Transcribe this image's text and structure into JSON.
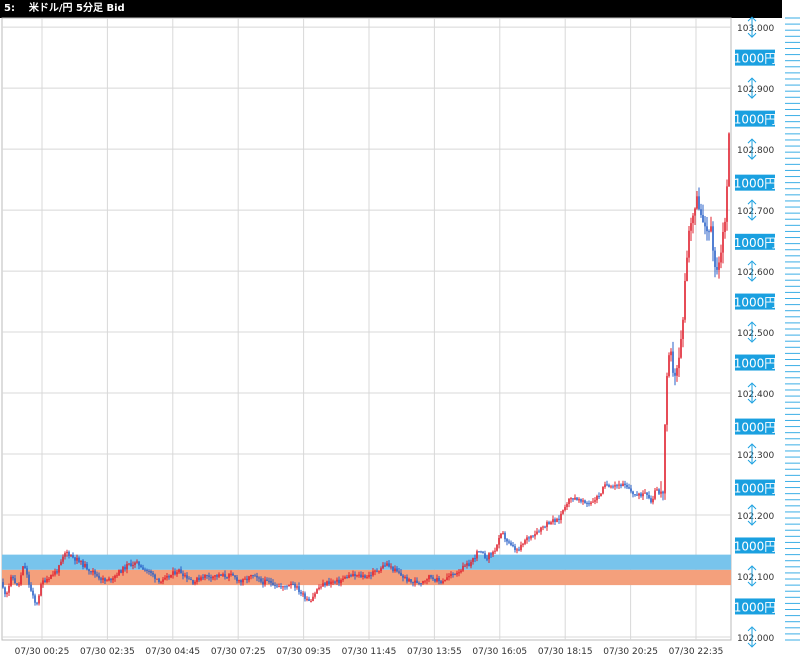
{
  "window": {
    "title": "5:    米ドル/円 5分足 Bid"
  },
  "colors": {
    "up": "#e0202e",
    "down": "#2860c8",
    "grid": "#d8d8d8",
    "band_blue": "#78c4ec",
    "band_orange": "#f4a07c",
    "badge_bg": "#1aa0e0",
    "badge_text": "#ffffff",
    "ladder_blue": "#3aaee6",
    "ladder_red": "#e04050",
    "ladder_black": "#333333"
  },
  "chart_data": {
    "type": "candlestick",
    "instrument": "米ドル/円 5分足 Bid",
    "ylim": [
      101.995,
      103.015
    ],
    "yticks": [
      "103.000",
      "102.900",
      "102.800",
      "102.700",
      "102.600",
      "102.500",
      "102.400",
      "102.300",
      "102.200",
      "102.100",
      "102.000"
    ],
    "xticks": [
      "07/30 00:25",
      "07/30 02:35",
      "07/30 04:45",
      "07/30 07:25",
      "07/30 09:35",
      "07/30 11:45",
      "07/30 13:55",
      "07/30 16:05",
      "07/30 18:15",
      "07/30 20:25",
      "07/30 22:35"
    ],
    "badges": [
      "1000円",
      "1000円",
      "1000円",
      "1000円",
      "1000円",
      "1000円",
      "1000円",
      "1000円",
      "1000円",
      "1000円"
    ],
    "badge_prices": [
      102.95,
      102.85,
      102.745,
      102.648,
      102.55,
      102.45,
      102.345,
      102.245,
      102.15,
      102.05
    ],
    "bands": [
      {
        "name": "upper-band",
        "color": "blue",
        "y_range": [
          102.11,
          102.135
        ]
      },
      {
        "name": "lower-band",
        "color": "orange",
        "y_range": [
          102.085,
          102.11
        ]
      }
    ],
    "price_path": [
      [
        0,
        102.09
      ],
      [
        6,
        102.07
      ],
      [
        12,
        102.1
      ],
      [
        18,
        102.08
      ],
      [
        24,
        102.12
      ],
      [
        30,
        102.08
      ],
      [
        36,
        102.05
      ],
      [
        42,
        102.09
      ],
      [
        50,
        102.1
      ],
      [
        58,
        102.11
      ],
      [
        66,
        102.14
      ],
      [
        74,
        102.13
      ],
      [
        82,
        102.12
      ],
      [
        90,
        102.11
      ],
      [
        98,
        102.1
      ],
      [
        106,
        102.09
      ],
      [
        114,
        102.1
      ],
      [
        122,
        102.11
      ],
      [
        130,
        102.12
      ],
      [
        138,
        102.12
      ],
      [
        146,
        102.11
      ],
      [
        154,
        102.1
      ],
      [
        162,
        102.09
      ],
      [
        170,
        102.1
      ],
      [
        178,
        102.11
      ],
      [
        186,
        102.1
      ],
      [
        194,
        102.09
      ],
      [
        202,
        102.1
      ],
      [
        212,
        102.1
      ],
      [
        222,
        102.1
      ],
      [
        232,
        102.1
      ],
      [
        242,
        102.09
      ],
      [
        252,
        102.1
      ],
      [
        262,
        102.09
      ],
      [
        272,
        102.09
      ],
      [
        282,
        102.08
      ],
      [
        292,
        102.09
      ],
      [
        302,
        102.07
      ],
      [
        310,
        102.06
      ],
      [
        318,
        102.08
      ],
      [
        328,
        102.09
      ],
      [
        338,
        102.09
      ],
      [
        348,
        102.1
      ],
      [
        358,
        102.1
      ],
      [
        368,
        102.1
      ],
      [
        378,
        102.11
      ],
      [
        386,
        102.12
      ],
      [
        394,
        102.11
      ],
      [
        402,
        102.1
      ],
      [
        410,
        102.09
      ],
      [
        420,
        102.09
      ],
      [
        430,
        102.1
      ],
      [
        440,
        102.09
      ],
      [
        450,
        102.1
      ],
      [
        460,
        102.11
      ],
      [
        470,
        102.12
      ],
      [
        478,
        102.14
      ],
      [
        486,
        102.13
      ],
      [
        494,
        102.14
      ],
      [
        502,
        102.17
      ],
      [
        510,
        102.15
      ],
      [
        518,
        102.14
      ],
      [
        526,
        102.16
      ],
      [
        534,
        102.17
      ],
      [
        542,
        102.18
      ],
      [
        550,
        102.19
      ],
      [
        558,
        102.19
      ],
      [
        566,
        102.22
      ],
      [
        574,
        102.23
      ],
      [
        582,
        102.22
      ],
      [
        590,
        102.22
      ],
      [
        598,
        102.23
      ],
      [
        606,
        102.25
      ],
      [
        614,
        102.25
      ],
      [
        622,
        102.25
      ],
      [
        630,
        102.24
      ],
      [
        638,
        102.23
      ],
      [
        646,
        102.24
      ],
      [
        652,
        102.22
      ],
      [
        656,
        102.25
      ],
      [
        660,
        102.23
      ],
      [
        663,
        102.24
      ],
      [
        666,
        102.4
      ],
      [
        670,
        102.47
      ],
      [
        674,
        102.43
      ],
      [
        678,
        102.44
      ],
      [
        682,
        102.5
      ],
      [
        686,
        102.61
      ],
      [
        690,
        102.68
      ],
      [
        694,
        102.7
      ],
      [
        698,
        102.72
      ],
      [
        702,
        102.68
      ],
      [
        706,
        102.66
      ],
      [
        710,
        102.68
      ],
      [
        714,
        102.62
      ],
      [
        718,
        102.6
      ],
      [
        722,
        102.65
      ],
      [
        726,
        102.7
      ],
      [
        729,
        102.82
      ],
      [
        731,
        102.8
      ]
    ]
  }
}
